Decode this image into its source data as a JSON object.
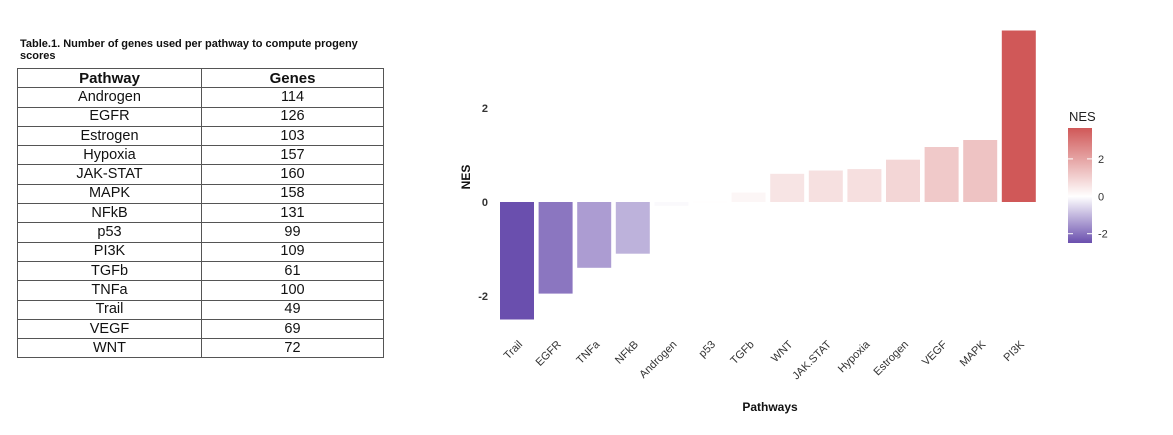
{
  "table": {
    "caption": "Table.1. Number of genes used per pathway to compute progeny scores",
    "headers": [
      "Pathway",
      "Genes"
    ],
    "rows": [
      [
        "Androgen",
        "114"
      ],
      [
        "EGFR",
        "126"
      ],
      [
        "Estrogen",
        "103"
      ],
      [
        "Hypoxia",
        "157"
      ],
      [
        "JAK-STAT",
        "160"
      ],
      [
        "MAPK",
        "158"
      ],
      [
        "NFkB",
        "131"
      ],
      [
        "p53",
        "99"
      ],
      [
        "PI3K",
        "109"
      ],
      [
        "TGFb",
        "61"
      ],
      [
        "TNFa",
        "100"
      ],
      [
        "Trail",
        "49"
      ],
      [
        "VEGF",
        "69"
      ],
      [
        "WNT",
        "72"
      ]
    ]
  },
  "chart_data": {
    "type": "bar",
    "categories": [
      "Trail",
      "EGFR",
      "TNFa",
      "NFkB",
      "Androgen",
      "p53",
      "TGFb",
      "WNT",
      "JAK.STAT",
      "Hypoxia",
      "Estrogen",
      "VEGF",
      "MAPK",
      "PI3K"
    ],
    "values": [
      -2.5,
      -1.95,
      -1.4,
      -1.1,
      -0.08,
      0.02,
      0.2,
      0.6,
      0.67,
      0.7,
      0.9,
      1.17,
      1.32,
      3.65
    ],
    "xlabel": "Pathways",
    "ylabel": "NES",
    "yticks": [
      -2,
      0,
      2
    ],
    "ylim": [
      -2.7,
      3.65
    ],
    "grid": false,
    "legend": {
      "title": "NES",
      "position": "right",
      "ticks": [
        -2,
        0,
        2
      ],
      "colors": {
        "low": "#6a4fae",
        "mid": "#ffffff",
        "high": "#d05858"
      },
      "range": [
        -2.5,
        3.65
      ]
    }
  }
}
